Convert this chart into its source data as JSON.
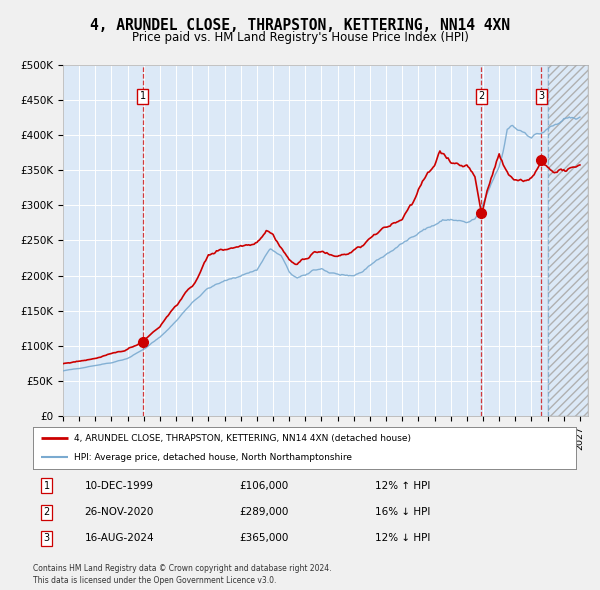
{
  "title": "4, ARUNDEL CLOSE, THRAPSTON, KETTERING, NN14 4XN",
  "subtitle": "Price paid vs. HM Land Registry's House Price Index (HPI)",
  "red_line_label": "4, ARUNDEL CLOSE, THRAPSTON, KETTERING, NN14 4XN (detached house)",
  "blue_line_label": "HPI: Average price, detached house, North Northamptonshire",
  "sales": [
    {
      "date_yr": 1999.94,
      "price": 106000,
      "label": "1"
    },
    {
      "date_yr": 2020.9,
      "price": 289000,
      "label": "2"
    },
    {
      "date_yr": 2024.62,
      "price": 365000,
      "label": "3"
    }
  ],
  "table_rows": [
    [
      "1",
      "10-DEC-1999",
      "£106,000",
      "12% ↑ HPI"
    ],
    [
      "2",
      "26-NOV-2020",
      "£289,000",
      "16% ↓ HPI"
    ],
    [
      "3",
      "16-AUG-2024",
      "£365,000",
      "12% ↓ HPI"
    ]
  ],
  "footnote": "Contains HM Land Registry data © Crown copyright and database right 2024.\nThis data is licensed under the Open Government Licence v3.0.",
  "ylim": [
    0,
    500000
  ],
  "yticks": [
    0,
    50000,
    100000,
    150000,
    200000,
    250000,
    300000,
    350000,
    400000,
    450000,
    500000
  ],
  "ytick_labels": [
    "£0",
    "£50K",
    "£100K",
    "£150K",
    "£200K",
    "£250K",
    "£300K",
    "£350K",
    "£400K",
    "£450K",
    "£500K"
  ],
  "xlim_start": 1995.0,
  "xlim_end": 2027.5,
  "forecast_start": 2025.0,
  "plot_bg_color": "#dce9f7",
  "fig_bg_color": "#f0f0f0",
  "grid_color": "#ffffff",
  "red_color": "#cc0000",
  "blue_color": "#7aaad0",
  "title_fontsize": 10.5,
  "subtitle_fontsize": 8.5,
  "hpi_anchors": {
    "1995.0": 64000,
    "1996.0": 68000,
    "1997.0": 72000,
    "1998.0": 76000,
    "1999.0": 82000,
    "2000.0": 95000,
    "2001.0": 112000,
    "2002.0": 135000,
    "2003.0": 162000,
    "2004.0": 182000,
    "2005.0": 192000,
    "2006.0": 200000,
    "2007.0": 208000,
    "2007.8": 238000,
    "2008.5": 228000,
    "2009.0": 205000,
    "2009.5": 196000,
    "2010.0": 200000,
    "2010.5": 208000,
    "2011.0": 210000,
    "2011.5": 204000,
    "2012.0": 202000,
    "2012.5": 198000,
    "2013.0": 200000,
    "2013.5": 205000,
    "2014.0": 215000,
    "2015.0": 230000,
    "2016.0": 245000,
    "2017.0": 262000,
    "2018.0": 272000,
    "2018.5": 278000,
    "2019.0": 280000,
    "2019.5": 278000,
    "2020.0": 275000,
    "2020.5": 280000,
    "2021.0": 300000,
    "2021.5": 330000,
    "2022.0": 355000,
    "2022.3": 380000,
    "2022.5": 408000,
    "2022.8": 415000,
    "2023.0": 410000,
    "2023.5": 405000,
    "2024.0": 398000,
    "2024.5": 402000,
    "2025.0": 408000,
    "2025.5": 415000,
    "2026.0": 420000,
    "2027.0": 428000
  },
  "red_anchors": {
    "1995.0": 74000,
    "1996.0": 78000,
    "1997.0": 82000,
    "1998.0": 88000,
    "1999.0": 95000,
    "1999.94": 106000,
    "2000.0": 108000,
    "2001.0": 128000,
    "2002.0": 158000,
    "2003.0": 185000,
    "2003.5": 205000,
    "2004.0": 228000,
    "2004.5": 235000,
    "2005.0": 238000,
    "2006.0": 242000,
    "2007.0": 248000,
    "2007.6": 265000,
    "2008.0": 258000,
    "2008.5": 240000,
    "2009.0": 222000,
    "2009.5": 215000,
    "2010.0": 225000,
    "2010.5": 232000,
    "2011.0": 235000,
    "2011.5": 228000,
    "2012.0": 228000,
    "2012.5": 230000,
    "2013.0": 235000,
    "2013.5": 242000,
    "2014.0": 252000,
    "2015.0": 268000,
    "2016.0": 282000,
    "2017.0": 320000,
    "2017.5": 342000,
    "2018.0": 358000,
    "2018.3": 378000,
    "2018.6": 372000,
    "2019.0": 365000,
    "2019.5": 355000,
    "2020.0": 358000,
    "2020.5": 340000,
    "2020.9": 289000,
    "2021.0": 295000,
    "2021.3": 325000,
    "2021.6": 348000,
    "2022.0": 372000,
    "2022.3": 355000,
    "2022.6": 342000,
    "2023.0": 338000,
    "2023.5": 335000,
    "2024.0": 340000,
    "2024.3": 345000,
    "2024.62": 365000,
    "2024.8": 360000,
    "2025.0": 355000,
    "2025.5": 350000,
    "2026.0": 348000,
    "2027.0": 355000
  }
}
